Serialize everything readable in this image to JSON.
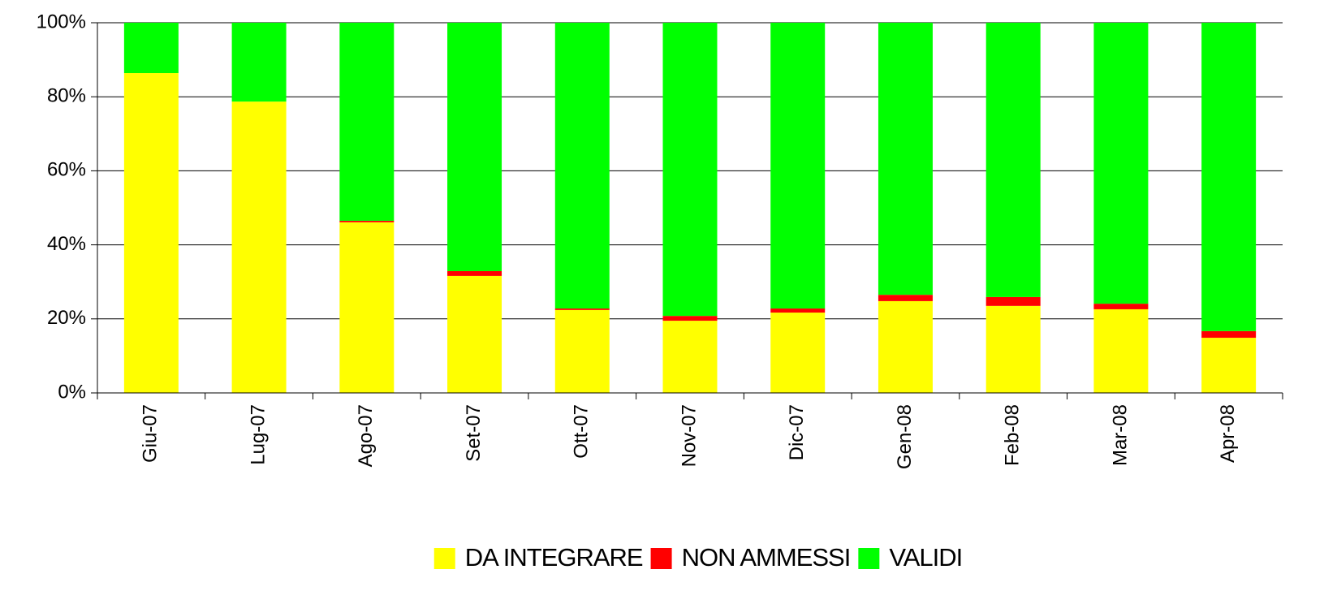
{
  "chart_data": {
    "type": "stacked_bar",
    "categories": [
      "Giu-07",
      "Lug-07",
      "Ago-07",
      "Set-07",
      "Ott-07",
      "Nov-07",
      "Dic-07",
      "Gen-08",
      "Feb-08",
      "Mar-08",
      "Apr-08"
    ],
    "series": [
      {
        "name": "DA INTEGRARE",
        "color": "#ffff00",
        "values": [
          86.4,
          78.7,
          46.1,
          31.6,
          22.4,
          19.5,
          21.7,
          24.8,
          23.5,
          22.6,
          14.9
        ]
      },
      {
        "name": "NON AMMESSI",
        "color": "#ff0000",
        "values": [
          0,
          0,
          0.4,
          1.3,
          0.4,
          1.3,
          1.1,
          1.7,
          2.4,
          1.5,
          1.8
        ]
      },
      {
        "name": "VALIDI",
        "color": "#00ff00",
        "values": [
          13.6,
          21.3,
          53.5,
          67.1,
          77.2,
          79.2,
          77.2,
          73.5,
          74.1,
          75.9,
          83.3
        ]
      }
    ],
    "ylim": [
      0,
      100
    ],
    "yticks": [
      {
        "value": 0,
        "label": "0%"
      },
      {
        "value": 20,
        "label": "20%"
      },
      {
        "value": 40,
        "label": "40%"
      },
      {
        "value": 60,
        "label": "60%"
      },
      {
        "value": 80,
        "label": "80%"
      },
      {
        "value": 100,
        "label": "100%"
      }
    ],
    "grid": true,
    "legend": "bottom"
  }
}
